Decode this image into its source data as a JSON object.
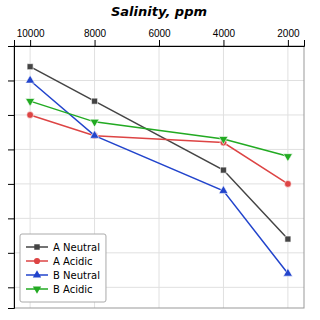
{
  "chart_data": {
    "type": "line",
    "title": "Salinity, ppm",
    "x": [
      10000,
      8000,
      4000,
      2000
    ],
    "series": [
      {
        "name": "A Neutral",
        "color": "#444444",
        "marker": "square",
        "line_style": "solid",
        "values": [
          -3,
          -8,
          -18,
          -28
        ]
      },
      {
        "name": "A Acidic",
        "color": "#dd4444",
        "marker": "circle",
        "line_style": "solid",
        "values": [
          -10,
          -13,
          -14,
          -20
        ]
      },
      {
        "name": "B Neutral",
        "color": "#2244cc",
        "marker": "triangle-up",
        "line_style": "solid",
        "values": [
          -5,
          -13,
          -21,
          -33
        ]
      },
      {
        "name": "B Acidic",
        "color": "#22aa22",
        "marker": "triangle-down",
        "line_style": "solid",
        "values": [
          -8,
          -11,
          -13.5,
          -16
        ]
      }
    ],
    "xlim": [
      10500,
      1500
    ],
    "ylim": [
      -38,
      0
    ],
    "xticks": [
      10000,
      8000,
      6000,
      4000,
      2000
    ],
    "yticks": [
      -35,
      -30,
      -25,
      -20,
      -15,
      -10,
      -5,
      0
    ],
    "grid": true,
    "legend": "lower left",
    "tick_labels": "x"
  }
}
